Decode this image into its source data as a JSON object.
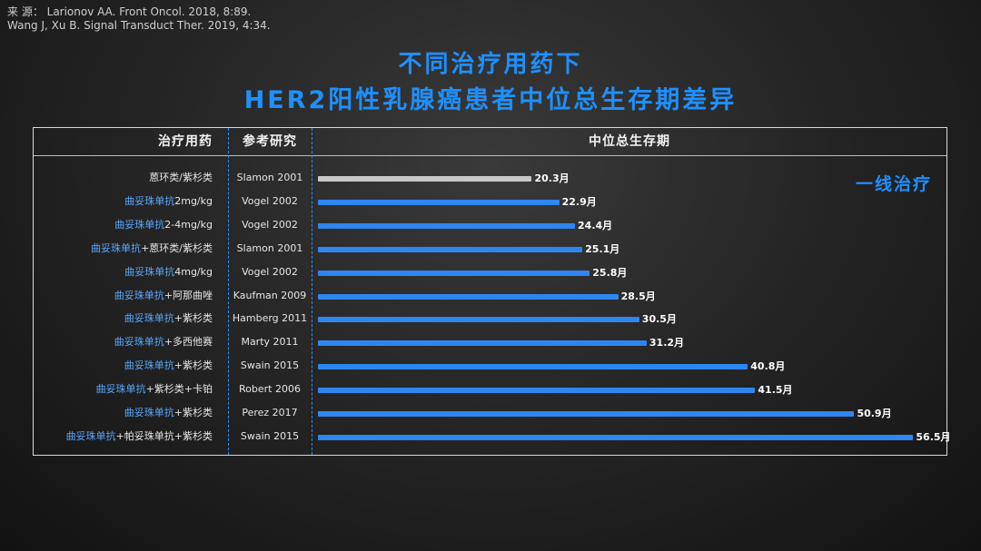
{
  "source": {
    "line1": "来 源： Larionov AA. Front Oncol. 2018, 8:89.",
    "line2": "Wang J, Xu B. Signal Transduct Ther. 2019, 4:34."
  },
  "title": {
    "line1": "不同治疗用药下",
    "line2": "HER2阳性乳腺癌患者中位总生存期差异"
  },
  "headers": {
    "drug": "治疗用药",
    "study": "参考研究",
    "os": "中位总生存期"
  },
  "annotation": "一线治疗",
  "colors": {
    "blue": "#2e86f0",
    "gray": "#c8c8c8",
    "title": "#1e90ff"
  },
  "chart_data": {
    "type": "bar",
    "orientation": "horizontal",
    "unit": "月",
    "xlim": [
      0,
      57
    ],
    "categories": [
      "蒽环类/紫杉类",
      "曲妥珠单抗2mg/kg",
      "曲妥珠单抗2-4mg/kg",
      "曲妥珠单抗+蒽环类/紫杉类",
      "曲妥珠单抗4mg/kg",
      "曲妥珠单抗+阿那曲唑",
      "曲妥珠单抗+紫杉类",
      "曲妥珠单抗+多西他赛",
      "曲妥珠单抗+紫杉类",
      "曲妥珠单抗+紫杉类+卡铂",
      "曲妥珠单抗+紫杉类",
      "曲妥珠单抗+帕妥珠单抗+紫杉类"
    ],
    "studies": [
      "Slamon 2001",
      "Vogel 2002",
      "Vogel 2002",
      "Slamon 2001",
      "Vogel 2002",
      "Kaufman 2009",
      "Hamberg 2011",
      "Marty 2011",
      "Swain 2015",
      "Robert 2006",
      "Perez 2017",
      "Swain 2015"
    ],
    "values": [
      20.3,
      22.9,
      24.4,
      25.1,
      25.8,
      28.5,
      30.5,
      31.2,
      40.8,
      41.5,
      50.9,
      56.5
    ],
    "value_labels": [
      "20.3月",
      "22.9月",
      "24.4月",
      "25.1月",
      "25.8月",
      "28.5月",
      "30.5月",
      "31.2月",
      "40.8月",
      "41.5月",
      "50.9月",
      "56.5月"
    ],
    "bar_colors": [
      "#c8c8c8",
      "#2e86f0",
      "#2e86f0",
      "#2e86f0",
      "#2e86f0",
      "#2e86f0",
      "#2e86f0",
      "#2e86f0",
      "#2e86f0",
      "#2e86f0",
      "#2e86f0",
      "#2e86f0"
    ]
  }
}
